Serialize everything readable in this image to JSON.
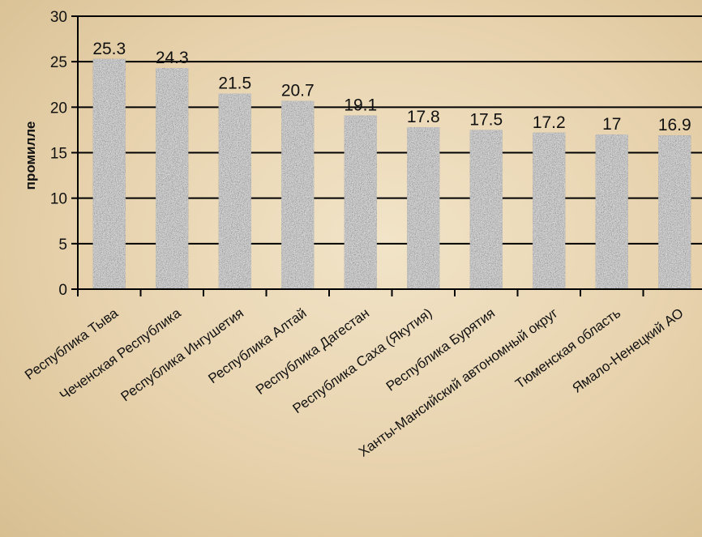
{
  "chart_data": {
    "type": "bar",
    "title": "",
    "xlabel": "",
    "ylabel": "промилле",
    "ylim": [
      0,
      30
    ],
    "yticks": [
      0,
      5,
      10,
      15,
      20,
      25,
      30
    ],
    "grid": true,
    "legend": "none",
    "categories": [
      "Республика Тыва",
      "Чеченская Республика",
      "Республика Ингушетия",
      "Республика Алтай",
      "Республика Дагестан",
      "Республика Саха (Якутия)",
      "Республика Бурятия",
      "Ханты-Мансийский автономный округ",
      "Тюменская область",
      "Ямало-Ненецкий АО"
    ],
    "values": [
      25.3,
      24.3,
      21.5,
      20.7,
      19.1,
      17.8,
      17.5,
      17.2,
      17,
      16.9
    ],
    "data_labels": [
      "25.3",
      "24.3",
      "21.5",
      "20.7",
      "19.1",
      "17.8",
      "17.5",
      "17.2",
      "17",
      "16.9"
    ]
  },
  "colors": {
    "bar_fill": "#8f8f8f",
    "bar_noise_dark": "#3a3a3a",
    "bar_noise_light": "#e8e8e8",
    "grid": "#000000",
    "axis": "#000000",
    "text": "#111111"
  }
}
